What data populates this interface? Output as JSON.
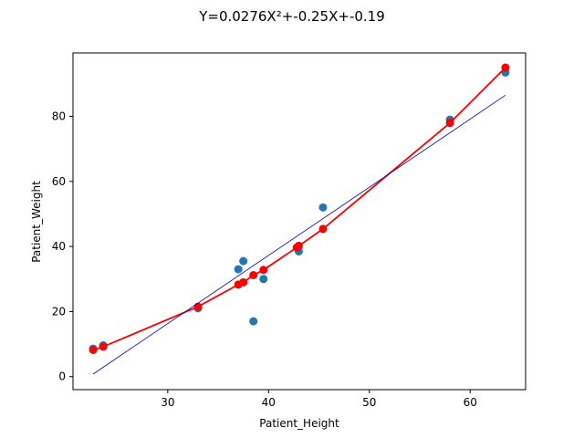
{
  "chart_data": {
    "type": "scatter",
    "title": "Y=0.0276X²+-0.25X+-0.19",
    "xlabel": "Patient_Height",
    "ylabel": "Patient_Weight",
    "xlim": [
      20.6,
      65.5
    ],
    "ylim": [
      -4.0,
      99.5
    ],
    "xticks": [
      30,
      40,
      50,
      60
    ],
    "yticks": [
      0,
      20,
      40,
      60,
      80
    ],
    "grid": false,
    "series": [
      {
        "kind": "scatter",
        "color": "#1f77b4",
        "points": [
          [
            22.6,
            8.6
          ],
          [
            23.6,
            9.6
          ],
          [
            33.0,
            21.0
          ],
          [
            37.0,
            33.0
          ],
          [
            37.5,
            35.5
          ],
          [
            38.5,
            17.0
          ],
          [
            39.5,
            30.0
          ],
          [
            43.0,
            38.5
          ],
          [
            45.4,
            52.0
          ],
          [
            58.0,
            79.0
          ],
          [
            63.5,
            93.5
          ]
        ]
      },
      {
        "kind": "line-with-markers",
        "color": "#ff0000",
        "points": [
          [
            22.6,
            8.2
          ],
          [
            23.6,
            9.2
          ],
          [
            33.0,
            21.5
          ],
          [
            37.0,
            28.3
          ],
          [
            37.5,
            29.0
          ],
          [
            38.5,
            31.2
          ],
          [
            39.5,
            32.8
          ],
          [
            42.8,
            39.7
          ],
          [
            43.0,
            40.2
          ],
          [
            45.4,
            45.4
          ],
          [
            58.0,
            78.0
          ],
          [
            63.5,
            95.0
          ]
        ]
      },
      {
        "kind": "line",
        "color": "#0000cc",
        "points": [
          [
            22.6,
            0.8
          ],
          [
            63.5,
            86.5
          ]
        ]
      }
    ]
  }
}
